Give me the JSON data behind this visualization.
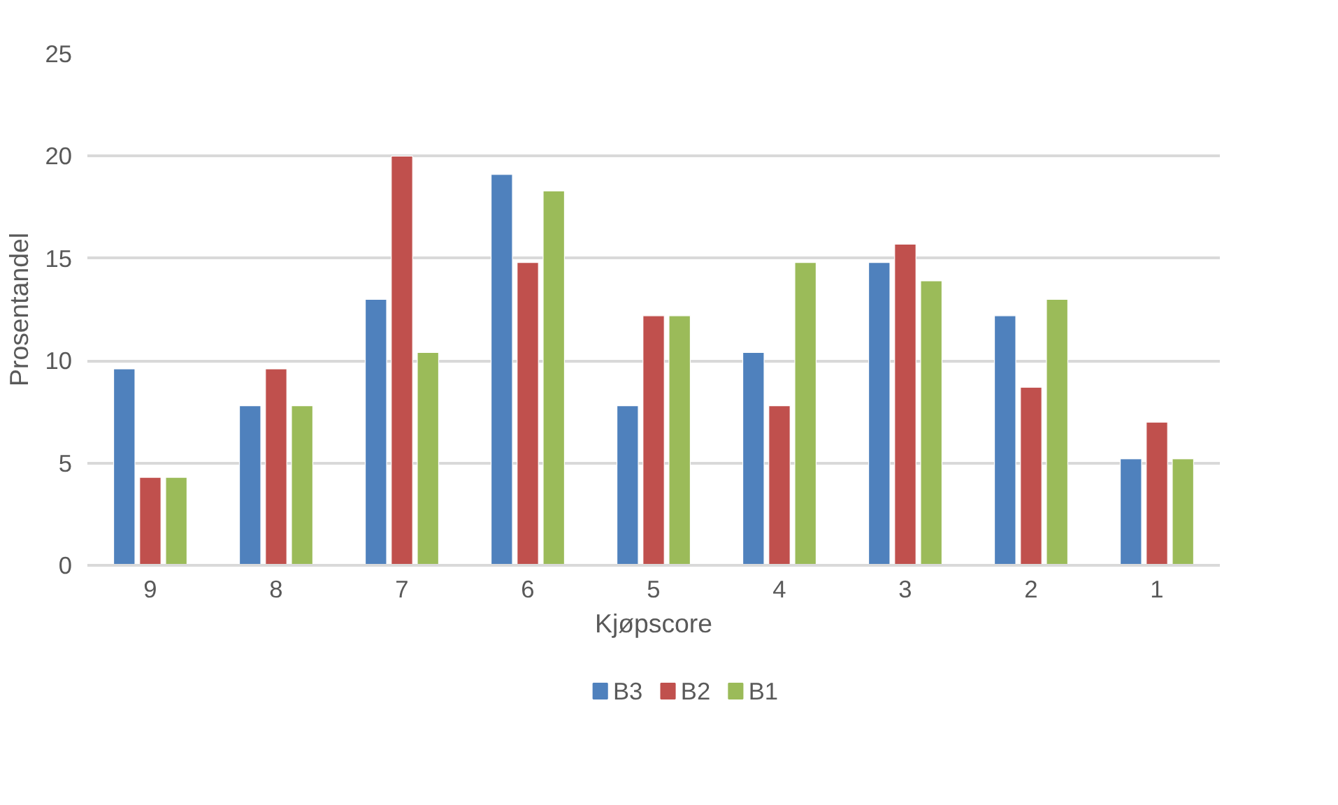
{
  "chart_data": {
    "type": "bar",
    "xlabel": "Kjøpscore",
    "ylabel": "Prosentandel",
    "categories": [
      "9",
      "8",
      "7",
      "6",
      "5",
      "4",
      "3",
      "2",
      "1"
    ],
    "series": [
      {
        "name": "B3",
        "color": "#4f81bd",
        "values": [
          9.6,
          7.8,
          13.0,
          19.1,
          7.8,
          10.4,
          14.8,
          12.2,
          5.2
        ]
      },
      {
        "name": "B2",
        "color": "#c0504d",
        "values": [
          4.3,
          9.6,
          20.0,
          14.8,
          12.2,
          7.8,
          15.7,
          8.7,
          7.0
        ]
      },
      {
        "name": "B1",
        "color": "#9bbb59",
        "values": [
          4.3,
          7.8,
          10.4,
          18.3,
          12.2,
          14.8,
          13.9,
          13.0,
          5.2
        ]
      }
    ],
    "ylim": [
      0,
      25
    ],
    "yticks": [
      0,
      5,
      10,
      15,
      20,
      25
    ],
    "grid": "y",
    "legend": "bottom"
  }
}
